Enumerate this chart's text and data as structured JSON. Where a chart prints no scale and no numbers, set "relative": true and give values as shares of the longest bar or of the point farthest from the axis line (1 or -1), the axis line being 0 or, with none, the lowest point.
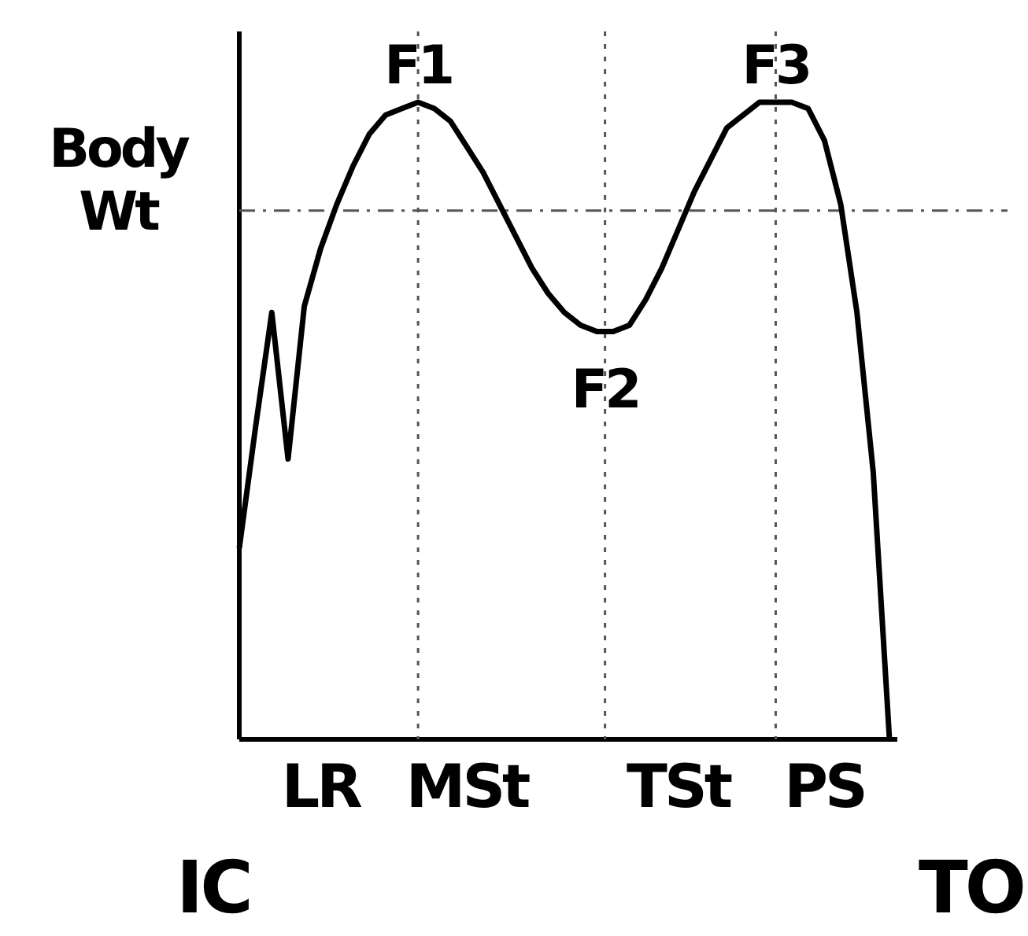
{
  "chart_data": {
    "type": "line",
    "relative": true,
    "tick_labels": "x",
    "categories": [
      null,
      null,
      null,
      null,
      null,
      "LR",
      null,
      null,
      null,
      null,
      null,
      null,
      null,
      null,
      "MSt",
      null,
      null,
      null,
      null,
      null,
      null,
      null,
      null,
      null,
      null,
      null,
      null,
      "TSt",
      null,
      null,
      null,
      null,
      null,
      null,
      null,
      null,
      "PS",
      null,
      null,
      null,
      null
    ],
    "series": [
      {
        "color": "#000000",
        "values": [
          0.3,
          0.49,
          0.67,
          0.44,
          0.68,
          0.77,
          0.84,
          0.9,
          0.95,
          0.98,
          0.99,
          1,
          0.99,
          0.97,
          0.93,
          0.89,
          0.84,
          0.79,
          0.74,
          0.7,
          0.67,
          0.65,
          0.64,
          0.64,
          0.65,
          0.69,
          0.74,
          0.8,
          0.86,
          0.91,
          0.96,
          0.98,
          1,
          1,
          1,
          0.99,
          0.94,
          0.84,
          0.67,
          0.42,
          0
        ]
      }
    ],
    "line_style": "solid",
    "marker": "none",
    "ref_lines": [
      {
        "axis": "y",
        "value": 0.83,
        "label": "Body Wt",
        "line_style": "dashed"
      }
    ],
    "annotations": [
      "F1",
      "F2",
      "F3",
      "IC",
      "TO"
    ]
  }
}
